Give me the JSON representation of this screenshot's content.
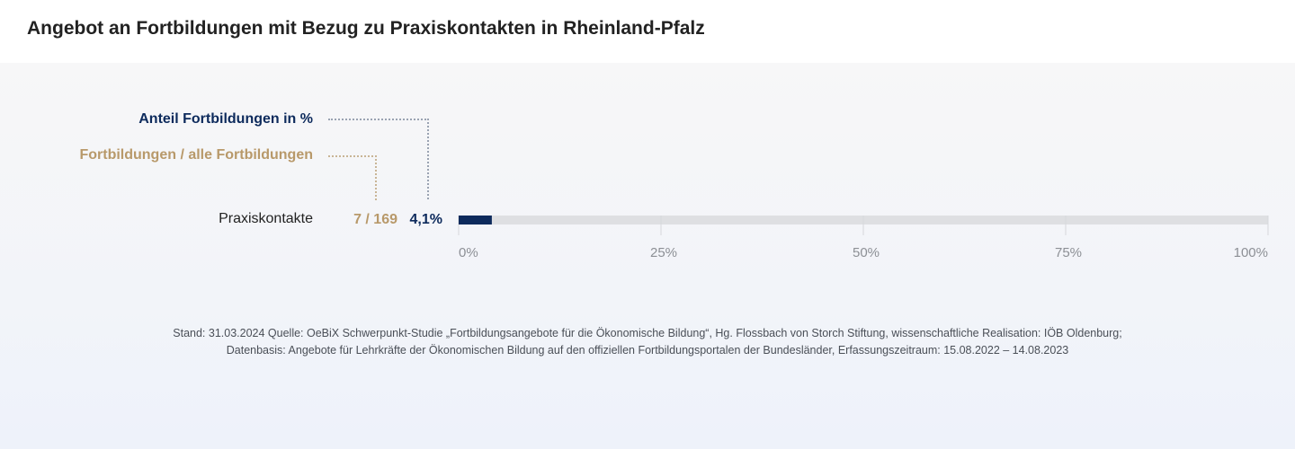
{
  "title": "Angebot an Fortbildungen mit Bezug zu Praxiskontakten in Rheinland-Pfalz",
  "legend": {
    "percent_label": "Anteil Fortbildungen  in %",
    "ratio_label": "Fortbildungen / alle Fortbildungen"
  },
  "colors": {
    "percent": "#0d2a5c",
    "ratio": "#b8996a",
    "track": "#dedfe2"
  },
  "chart_data": {
    "type": "bar",
    "orientation": "horizontal",
    "categories": [
      "Praxiskontakte"
    ],
    "values": [
      4.1
    ],
    "ratio_labels": [
      "7 / 169"
    ],
    "value_labels": [
      "4,1%"
    ],
    "xlim": [
      0,
      100
    ],
    "ticks": [
      0,
      25,
      50,
      75,
      100
    ],
    "tick_labels": [
      "0%",
      "25%",
      "50%",
      "75%",
      "100%"
    ],
    "grid": true
  },
  "footer": {
    "line1": "Stand: 31.03.2024 Quelle: OeBiX Schwerpunkt-Studie „Fortbildungsangebote für die Ökonomische Bildung“, Hg. Flossbach von Storch Stiftung, wissenschaftliche Realisation: IÖB Oldenburg;",
    "line2": "Datenbasis: Angebote für Lehrkräfte der Ökonomischen Bildung auf den offiziellen Fortbildungsportalen der Bundesländer, Erfassungszeitraum: 15.08.2022 – 14.08.2023"
  }
}
